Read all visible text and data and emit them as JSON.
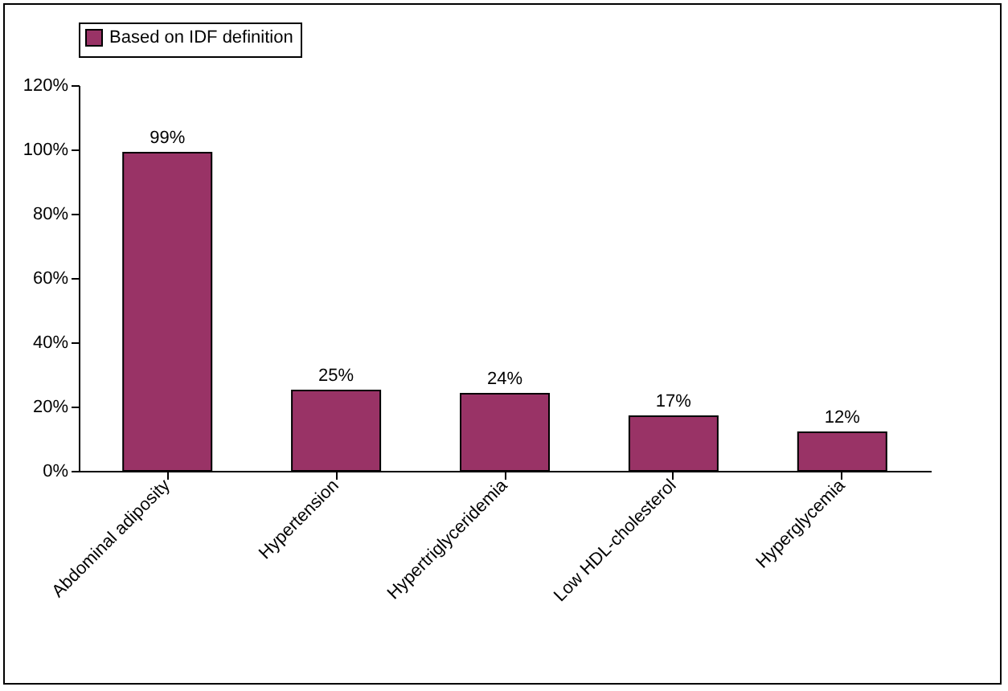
{
  "chart_data": {
    "type": "bar",
    "categories": [
      "Abdominal adiposity",
      "Hypertension",
      "Hypertriglyceridemia",
      "Low HDL-cholesterol",
      "Hyperglycemia"
    ],
    "series": [
      {
        "name": "Based on IDF definition",
        "color": "#993366",
        "values": [
          99,
          25,
          24,
          17,
          12
        ],
        "value_labels": [
          "99%",
          "25%",
          "24%",
          "17%",
          "12%"
        ]
      }
    ],
    "ylim": [
      0,
      120
    ],
    "yticks": [
      {
        "value": 0,
        "label": "0%"
      },
      {
        "value": 20,
        "label": "20%"
      },
      {
        "value": 40,
        "label": "40%"
      },
      {
        "value": 60,
        "label": "60%"
      },
      {
        "value": 80,
        "label": "80%"
      },
      {
        "value": 100,
        "label": "100%"
      },
      {
        "value": 120,
        "label": "120%"
      }
    ],
    "legend": "top",
    "grid": false
  }
}
